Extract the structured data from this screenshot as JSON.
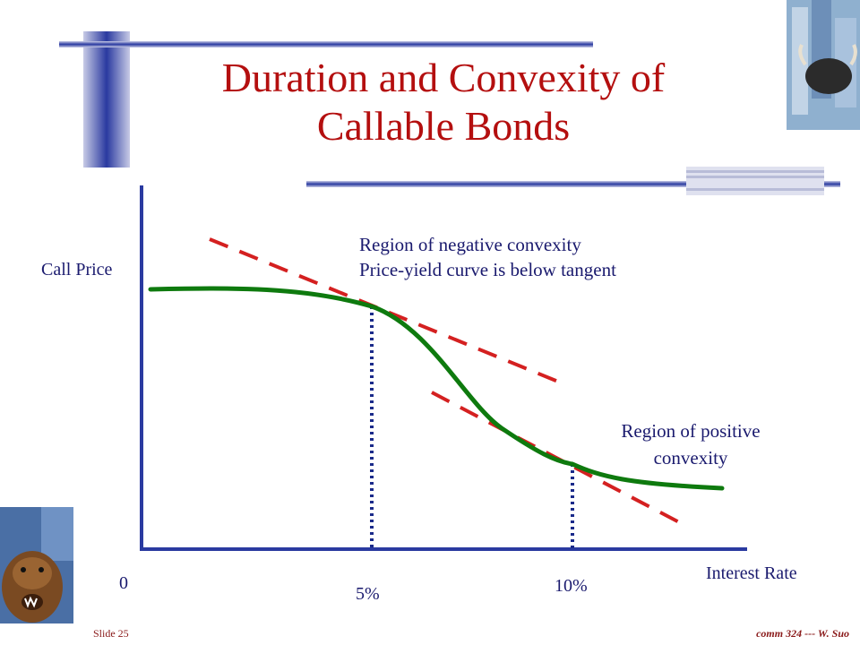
{
  "slide": {
    "title_line1": "Duration and Convexity of",
    "title_line2": "Callable Bonds",
    "footer_left": "Slide 25",
    "footer_right": "comm 324 --- W. Suo"
  },
  "chart_data": {
    "type": "line",
    "ylabel": "Call Price",
    "xlabel": "Interest Rate",
    "x_ticks": [
      "0",
      "5%",
      "10%"
    ],
    "annotations": [
      {
        "lines": [
          "Region of negative convexity",
          "Price-yield curve is below tangent"
        ]
      },
      {
        "lines": [
          "Region of positive",
          "convexity"
        ]
      }
    ],
    "series": [
      {
        "kind": "price-yield curve",
        "color": "#0e7a0e"
      },
      {
        "kind": "tangent at 5%",
        "color": "#d42020",
        "style": "dashed"
      },
      {
        "kind": "tangent at 10%",
        "color": "#d42020",
        "style": "dashed"
      }
    ],
    "grid": false
  },
  "colors": {
    "title": "#b40f0f",
    "text": "#1a1a6e",
    "accent_blue": "#2a3aa0",
    "curve": "#0e7a0e",
    "tangent": "#d42020"
  }
}
